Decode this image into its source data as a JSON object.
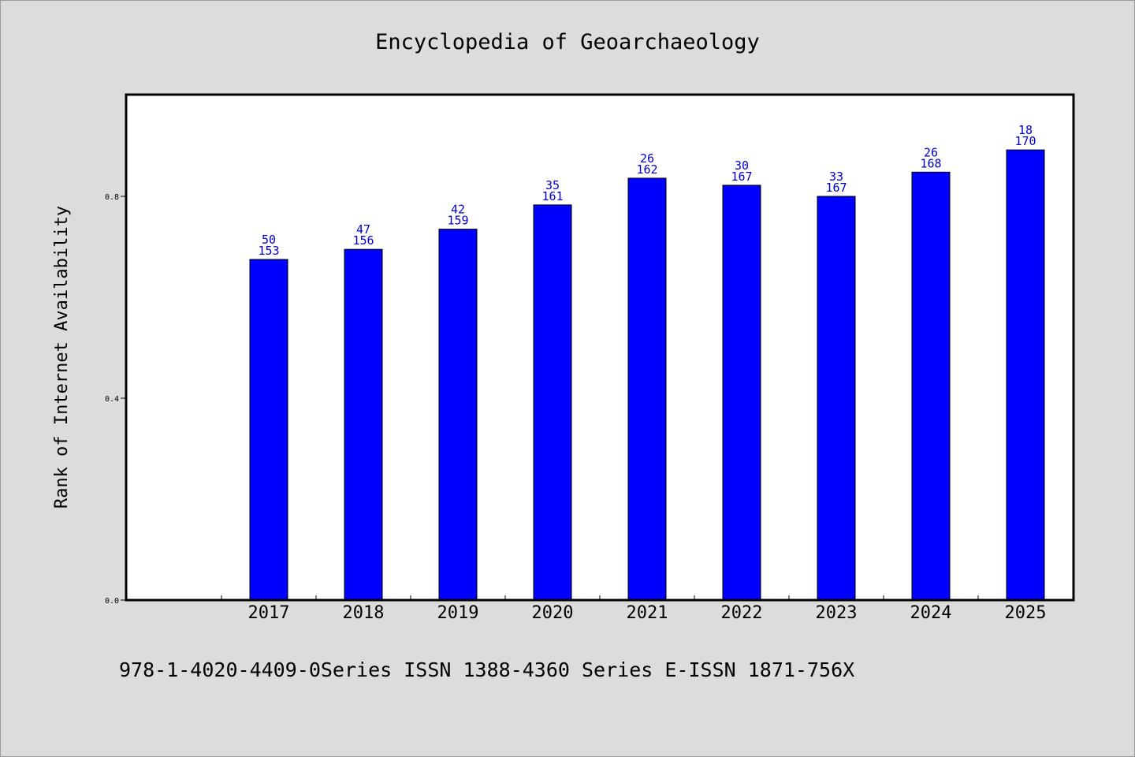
{
  "chart_data": {
    "type": "bar",
    "title": "Encyclopedia of Geoarchaeology",
    "ylabel": "Rank of Internet Availability",
    "xlabel": "",
    "ylim": [
      0,
      1.0
    ],
    "yticks": [
      0.0,
      0.4,
      0.8
    ],
    "ytick_labels": [
      "0.0",
      "0.4",
      "0.8"
    ],
    "categories": [
      "2017",
      "2018",
      "2019",
      "2020",
      "2021",
      "2022",
      "2023",
      "2024",
      "2025"
    ],
    "values": [
      0.675,
      0.695,
      0.735,
      0.783,
      0.836,
      0.822,
      0.8,
      0.848,
      0.892
    ],
    "data_labels_top": [
      "50",
      "47",
      "42",
      "35",
      "26",
      "30",
      "33",
      "26",
      "18"
    ],
    "data_labels_bottom": [
      "153",
      "156",
      "159",
      "161",
      "162",
      "167",
      "167",
      "168",
      "170"
    ],
    "bar_color": "#0000ff",
    "label_color": "#0000cc",
    "grid": false,
    "legend": "none"
  },
  "footer": {
    "text": "978-1-4020-4409-0Series ISSN 1388-4360 Series E-ISSN 1871-756X"
  }
}
